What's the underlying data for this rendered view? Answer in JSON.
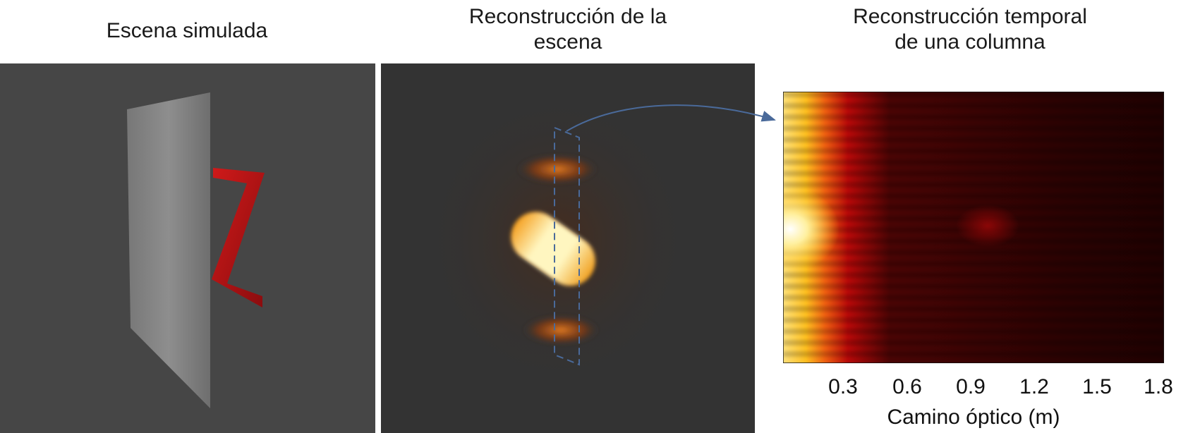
{
  "panels": [
    {
      "title_line1": "Escena simulada",
      "title_line2": ""
    },
    {
      "title_line1": "Reconstrucción de la",
      "title_line2": "escena"
    },
    {
      "title_line1": "Reconstrucción temporal",
      "title_line2": "de una columna"
    }
  ],
  "colors": {
    "scene_background": "#464646",
    "reconstruction_background": "#333333",
    "wall": "#8a8a8a",
    "target_object": "#c0151a",
    "annotation": "#4a6a9a",
    "colormap": "hot"
  },
  "chart_data": {
    "type": "heatmap",
    "title": "Reconstrucción temporal de una columna",
    "xlabel": "Camino óptico (m)",
    "ylabel": "",
    "x_ticks": [
      "0.3",
      "0.6",
      "0.9",
      "1.2",
      "1.5",
      "1.8"
    ],
    "xlim": [
      0.1,
      1.8
    ],
    "colormap": "hot"
  }
}
